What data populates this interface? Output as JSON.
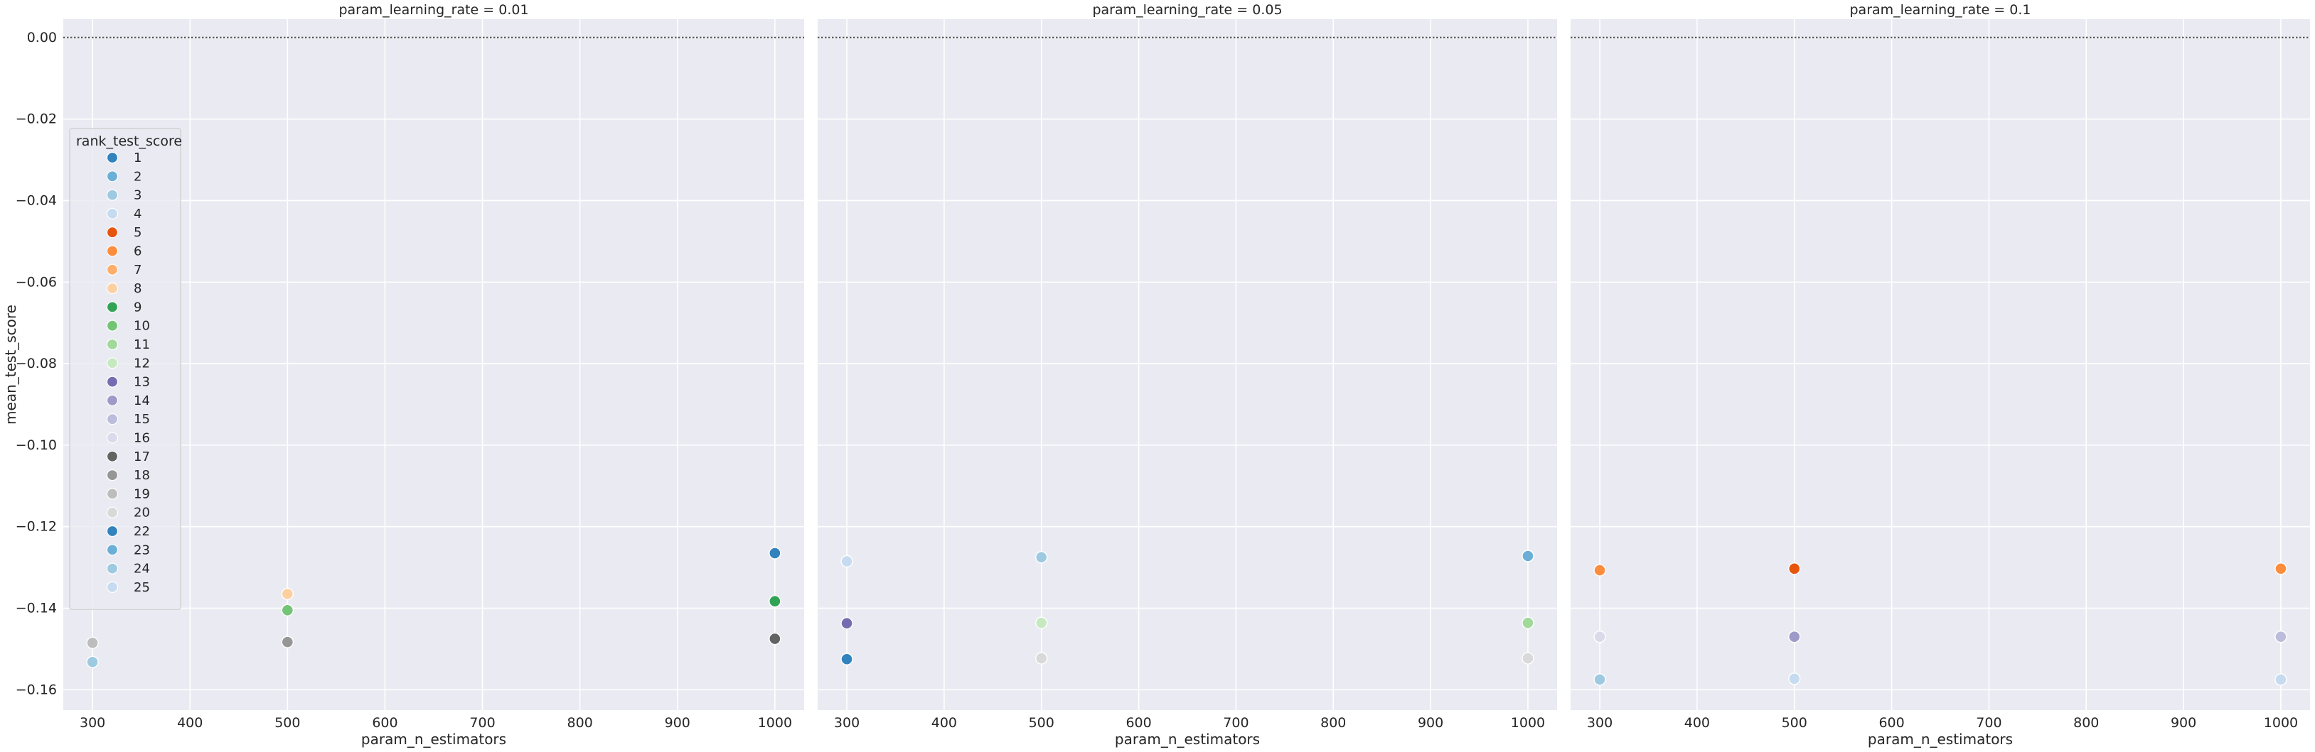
{
  "chart_data": {
    "type": "scatter",
    "facet_variable": "param_learning_rate",
    "xlabel": "param_n_estimators",
    "ylabel": "mean_test_score",
    "xlim": [
      270,
      1030
    ],
    "ylim": [
      -0.165,
      0.0045
    ],
    "xticks": [
      300,
      400,
      500,
      600,
      700,
      800,
      900,
      1000
    ],
    "yticks": [
      0.0,
      -0.02,
      -0.04,
      -0.06,
      -0.08,
      -0.1,
      -0.12,
      -0.14,
      -0.16
    ],
    "ytick_labels": [
      "0.00",
      "−0.02",
      "−0.04",
      "−0.06",
      "−0.08",
      "−0.10",
      "−0.12",
      "−0.14",
      "−0.16"
    ],
    "reference_line_y": 0.0,
    "grid": true,
    "legend": {
      "title": "rank_test_score",
      "placement": "upper-left of first panel",
      "entries": [
        {
          "label": "1",
          "color": "#3182bd"
        },
        {
          "label": "2",
          "color": "#6baed6"
        },
        {
          "label": "3",
          "color": "#9ecae1"
        },
        {
          "label": "4",
          "color": "#c6dbef"
        },
        {
          "label": "5",
          "color": "#e6550d"
        },
        {
          "label": "6",
          "color": "#fd8d3c"
        },
        {
          "label": "7",
          "color": "#fdae6b"
        },
        {
          "label": "8",
          "color": "#fdd0a2"
        },
        {
          "label": "9",
          "color": "#31a354"
        },
        {
          "label": "10",
          "color": "#74c476"
        },
        {
          "label": "11",
          "color": "#a1d99b"
        },
        {
          "label": "12",
          "color": "#c7e9c0"
        },
        {
          "label": "13",
          "color": "#756bb1"
        },
        {
          "label": "14",
          "color": "#9e9ac8"
        },
        {
          "label": "15",
          "color": "#bcbddc"
        },
        {
          "label": "16",
          "color": "#dadaeb"
        },
        {
          "label": "17",
          "color": "#636363"
        },
        {
          "label": "18",
          "color": "#969696"
        },
        {
          "label": "19",
          "color": "#bdbdbd"
        },
        {
          "label": "20",
          "color": "#d9d9d9"
        },
        {
          "label": "22",
          "color": "#3182bd"
        },
        {
          "label": "23",
          "color": "#6baed6"
        },
        {
          "label": "24",
          "color": "#9ecae1"
        },
        {
          "label": "25",
          "color": "#c6dbef"
        }
      ]
    },
    "panels": [
      {
        "title": "param_learning_rate = 0.01",
        "points": [
          {
            "x": 300,
            "y": -0.1485,
            "rank": "19"
          },
          {
            "x": 300,
            "y": -0.1532,
            "rank": "24"
          },
          {
            "x": 500,
            "y": -0.1365,
            "rank": "8"
          },
          {
            "x": 500,
            "y": -0.1405,
            "rank": "10"
          },
          {
            "x": 500,
            "y": -0.1483,
            "rank": "18"
          },
          {
            "x": 1000,
            "y": -0.1265,
            "rank": "22"
          },
          {
            "x": 1000,
            "y": -0.1383,
            "rank": "9"
          },
          {
            "x": 1000,
            "y": -0.1475,
            "rank": "17"
          }
        ]
      },
      {
        "title": "param_learning_rate = 0.05",
        "points": [
          {
            "x": 300,
            "y": -0.1285,
            "rank": "25"
          },
          {
            "x": 300,
            "y": -0.1437,
            "rank": "13"
          },
          {
            "x": 300,
            "y": -0.1525,
            "rank": "1"
          },
          {
            "x": 500,
            "y": -0.1275,
            "rank": "24"
          },
          {
            "x": 500,
            "y": -0.1436,
            "rank": "12"
          },
          {
            "x": 500,
            "y": -0.1523,
            "rank": "20"
          },
          {
            "x": 1000,
            "y": -0.1272,
            "rank": "23"
          },
          {
            "x": 1000,
            "y": -0.1436,
            "rank": "11"
          },
          {
            "x": 1000,
            "y": -0.1523,
            "rank": "20"
          }
        ]
      },
      {
        "title": "param_learning_rate = 0.1",
        "points": [
          {
            "x": 300,
            "y": -0.1307,
            "rank": "6"
          },
          {
            "x": 300,
            "y": -0.147,
            "rank": "16"
          },
          {
            "x": 300,
            "y": -0.1575,
            "rank": "3"
          },
          {
            "x": 500,
            "y": -0.1303,
            "rank": "5"
          },
          {
            "x": 500,
            "y": -0.147,
            "rank": "14"
          },
          {
            "x": 500,
            "y": -0.1573,
            "rank": "4"
          },
          {
            "x": 1000,
            "y": -0.1303,
            "rank": "6"
          },
          {
            "x": 1000,
            "y": -0.147,
            "rank": "15"
          },
          {
            "x": 1000,
            "y": -0.1575,
            "rank": "25"
          }
        ]
      }
    ]
  }
}
